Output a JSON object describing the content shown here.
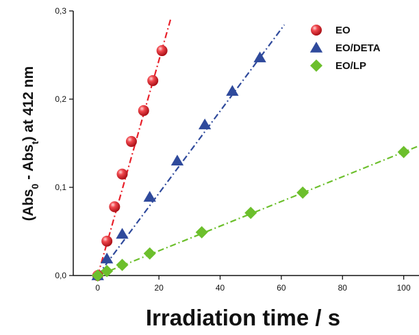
{
  "chart_data": {
    "type": "scatter",
    "title": "",
    "xlabel": "Irradiation time / s",
    "ylabel": {
      "p1": "(Abs",
      "s1": "0",
      "p2": " - Abs",
      "s2": "t",
      "p3": ") at 412 nm"
    },
    "xlim": [
      -8,
      105
    ],
    "ylim": [
      0,
      0.3
    ],
    "x_ticks": [
      0,
      20,
      40,
      60,
      80,
      100
    ],
    "x_tick_labels": [
      "0",
      "20",
      "40",
      "60",
      "80",
      "100"
    ],
    "y_ticks": [
      0,
      0.1,
      0.2,
      0.3
    ],
    "y_tick_labels": [
      "0,0",
      "0,1",
      "0,2",
      "0,3"
    ],
    "grid": false,
    "legend_position": "top-right",
    "series": [
      {
        "name": "EO",
        "marker": "sphere",
        "color": "#e8202a",
        "x": [
          0,
          3,
          5.5,
          8,
          11,
          15,
          18,
          21
        ],
        "y": [
          0.0,
          0.039,
          0.078,
          0.115,
          0.152,
          0.187,
          0.221,
          0.255
        ],
        "fit": {
          "slope": 0.0122,
          "intercept": 0.0,
          "x_range": [
            0,
            24
          ]
        }
      },
      {
        "name": "EO/DETA",
        "marker": "triangle",
        "color": "#2f4a9c",
        "x": [
          0,
          3,
          8,
          17,
          26,
          35,
          44,
          53
        ],
        "y": [
          0.0,
          0.019,
          0.047,
          0.089,
          0.13,
          0.171,
          0.209,
          0.247
        ],
        "fit": {
          "slope": 0.00466,
          "intercept": 0.0,
          "x_range": [
            0,
            61
          ]
        }
      },
      {
        "name": "EO/LP",
        "marker": "diamond",
        "color": "#6cbf2c",
        "x": [
          0,
          3,
          8,
          17,
          34,
          50,
          67,
          100
        ],
        "y": [
          0.0,
          0.005,
          0.012,
          0.025,
          0.049,
          0.071,
          0.094,
          0.14
        ],
        "fit": {
          "slope": 0.0014,
          "intercept": 0.0,
          "x_range": [
            0,
            105
          ]
        }
      }
    ]
  }
}
